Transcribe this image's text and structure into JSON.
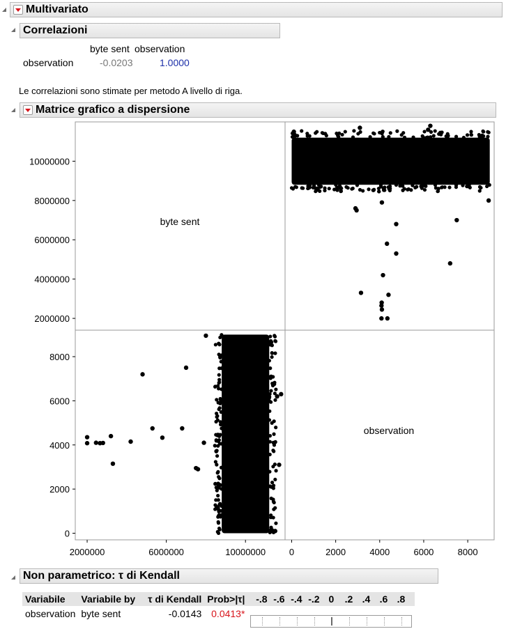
{
  "main_header": {
    "title": "Multivariato"
  },
  "correlations": {
    "title": "Correlazioni",
    "col_headers": [
      "byte sent",
      "observation"
    ],
    "row_label": "observation",
    "values": [
      "-0.0203",
      "1.0000"
    ],
    "note": "Le correlazioni sono stimate per metodo A livello di riga."
  },
  "scatter_matrix": {
    "title": "Matrice grafico a dispersione",
    "diag_labels": [
      "byte sent",
      "observation"
    ]
  },
  "chart_data": {
    "type": "scatter",
    "variables": [
      "byte sent",
      "observation"
    ],
    "byte_sent_ticks": [
      2000000,
      4000000,
      6000000,
      8000000,
      10000000
    ],
    "byte_sent_ticks_x": [
      2000000,
      6000000,
      10000000
    ],
    "observation_ticks": [
      0,
      2000,
      4000,
      6000,
      8000
    ],
    "byte_sent_range": [
      1400000,
      12000000
    ],
    "observation_range": [
      -300,
      9200
    ],
    "main_cluster": {
      "byte_sent_range": [
        8800000,
        11200000
      ],
      "observation_range": [
        0,
        9000
      ]
    },
    "outliers": [
      {
        "byte_sent": 7600000,
        "observation": 2900
      },
      {
        "byte_sent": 7900000,
        "observation": 4100
      },
      {
        "byte_sent": 8000000,
        "observation": 8950
      },
      {
        "byte_sent": 4200000,
        "observation": 4150
      },
      {
        "byte_sent": 2000000,
        "observation": 4080
      },
      {
        "byte_sent": 2000000,
        "observation": 4350
      },
      {
        "byte_sent": 2450000,
        "observation": 4100
      },
      {
        "byte_sent": 2650000,
        "observation": 4080
      },
      {
        "byte_sent": 2800000,
        "observation": 4090
      },
      {
        "byte_sent": 3200000,
        "observation": 4400
      },
      {
        "byte_sent": 3300000,
        "observation": 3150
      },
      {
        "byte_sent": 4800000,
        "observation": 7200
      },
      {
        "byte_sent": 5300000,
        "observation": 4750
      },
      {
        "byte_sent": 5800000,
        "observation": 4330
      },
      {
        "byte_sent": 6800000,
        "observation": 4750
      },
      {
        "byte_sent": 7000000,
        "observation": 7500
      },
      {
        "byte_sent": 7500000,
        "observation": 2950
      },
      {
        "byte_sent": 11600000,
        "observation": 6200
      },
      {
        "byte_sent": 11800000,
        "observation": 6300
      },
      {
        "byte_sent": 11700000,
        "observation": 3100
      },
      {
        "byte_sent": 11300000,
        "observation": 150
      },
      {
        "byte_sent": 11500000,
        "observation": 100
      }
    ]
  },
  "kendall": {
    "title": "Non parametrico: τ di Kendall",
    "headers": [
      "Variabile",
      "Variabile by",
      "τ di Kendall",
      "Prob>|τ|"
    ],
    "scale_ticks": [
      "-.8",
      "-.6",
      "-.4",
      "-.2",
      "0",
      ".2",
      ".4",
      ".6",
      ".8"
    ],
    "row": {
      "variable": "observation",
      "by": "byte sent",
      "tau": "-0.0143",
      "prob": "0.0413*",
      "tau_value": -0.0143
    }
  }
}
